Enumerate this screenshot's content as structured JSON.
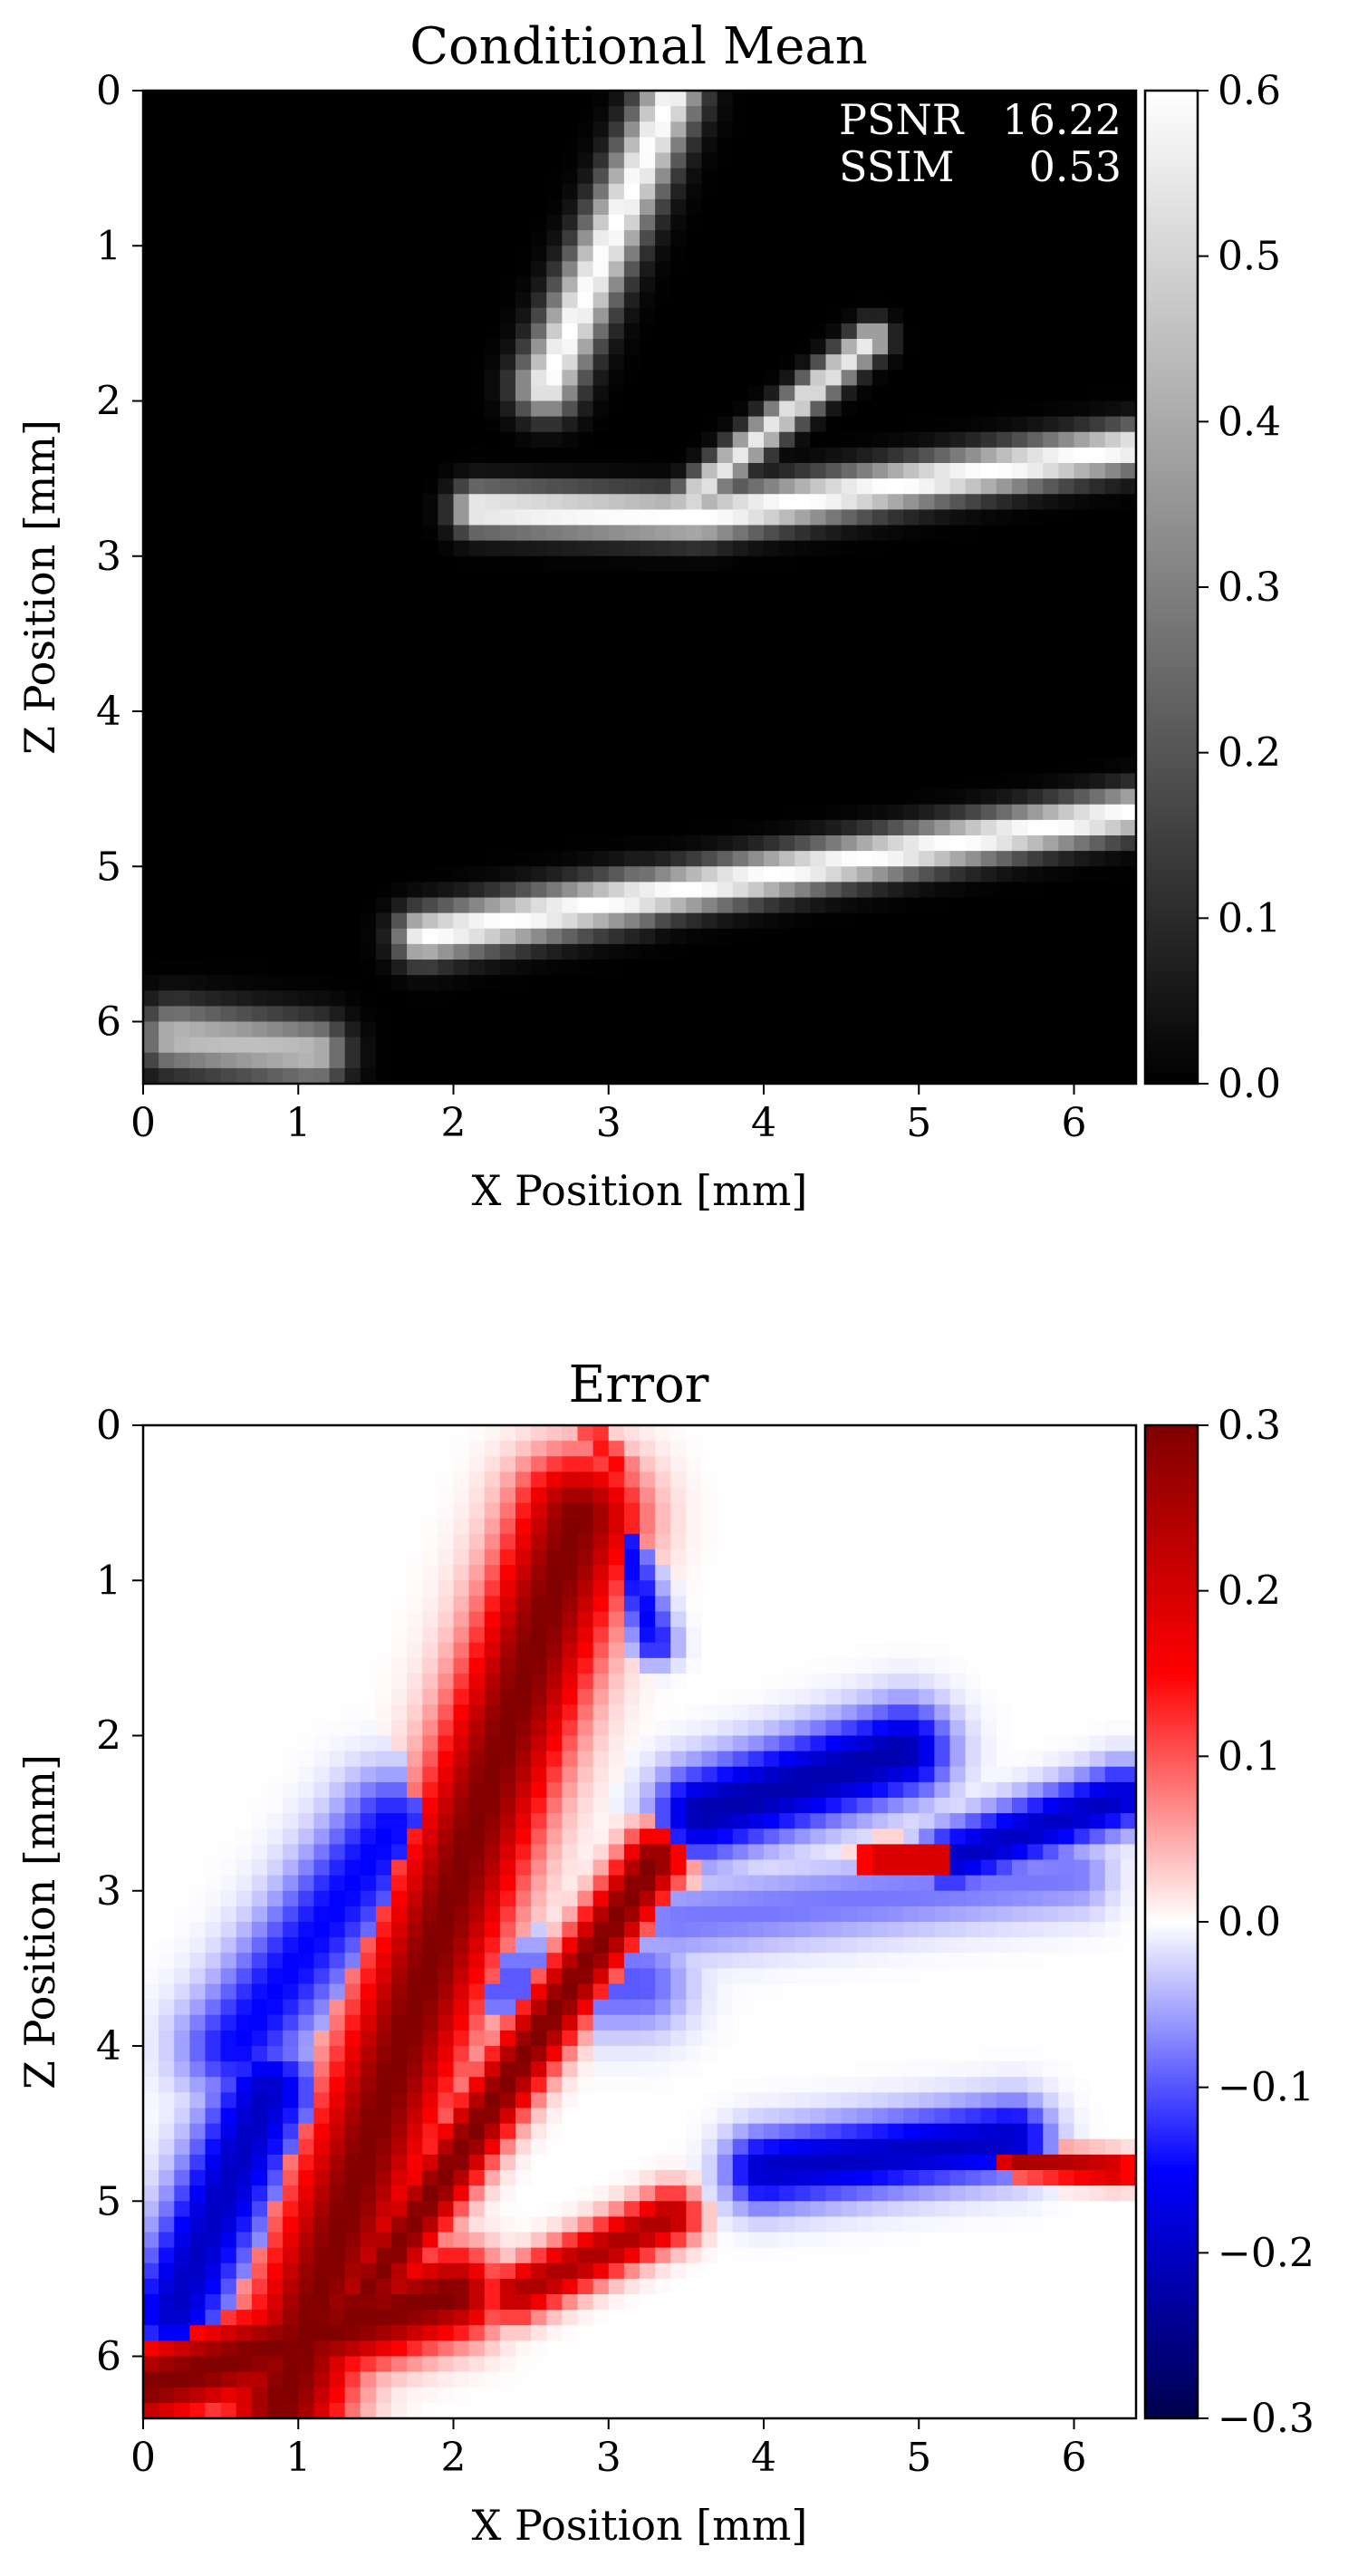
{
  "chart_data": [
    {
      "type": "heatmap",
      "title": "Conditional Mean",
      "xlabel": "X Position [mm]",
      "ylabel": "Z Position [mm]",
      "xlim": [
        0,
        6.4
      ],
      "ylim": [
        6.4,
        0
      ],
      "xticks": [
        0,
        1,
        2,
        3,
        4,
        5,
        6
      ],
      "yticks": [
        0,
        1,
        2,
        3,
        4,
        5,
        6
      ],
      "colormap": "gray",
      "colorbar": {
        "range": [
          0.0,
          0.6
        ],
        "ticks": [
          "0.0",
          "0.1",
          "0.2",
          "0.3",
          "0.4",
          "0.5",
          "0.6"
        ]
      },
      "annotations": [
        {
          "label": "PSNR",
          "value": "16.22"
        },
        {
          "label": "SSIM",
          "value": "0.53"
        }
      ],
      "features": [
        {
          "x1": 2.6,
          "z1": 1.9,
          "x2": 3.4,
          "z2": 0.05,
          "w": 0.28,
          "v": 0.6
        },
        {
          "x1": 2.15,
          "z1": 2.7,
          "x2": 3.6,
          "z2": 2.75,
          "w": 0.22,
          "v": 0.6
        },
        {
          "x1": 3.6,
          "z1": 2.75,
          "x2": 6.4,
          "z2": 2.3,
          "w": 0.22,
          "v": 0.6
        },
        {
          "x1": 3.5,
          "z1": 2.65,
          "x2": 4.7,
          "z2": 1.6,
          "w": 0.16,
          "v": 0.55
        },
        {
          "x1": 1.8,
          "z1": 5.45,
          "x2": 3.2,
          "z2": 5.2,
          "w": 0.24,
          "v": 0.6
        },
        {
          "x1": 3.2,
          "z1": 5.2,
          "x2": 6.4,
          "z2": 4.65,
          "w": 0.22,
          "v": 0.6
        },
        {
          "x1": 0.2,
          "z1": 6.1,
          "x2": 1.1,
          "z2": 6.2,
          "w": 0.3,
          "v": 0.45
        }
      ]
    },
    {
      "type": "heatmap",
      "title": "Error",
      "xlabel": "X Position [mm]",
      "ylabel": "Z Position [mm]",
      "xlim": [
        0,
        6.4
      ],
      "ylim": [
        6.4,
        0
      ],
      "xticks": [
        0,
        1,
        2,
        3,
        4,
        5,
        6
      ],
      "yticks": [
        0,
        1,
        2,
        3,
        4,
        5,
        6
      ],
      "colormap": "seismic",
      "colorbar": {
        "range": [
          -0.3,
          0.3
        ],
        "ticks": [
          "−0.3",
          "−0.2",
          "−0.1",
          "0.0",
          "0.1",
          "0.2",
          "0.3"
        ]
      },
      "features": [
        {
          "x1": 0.9,
          "z1": 6.3,
          "x2": 2.8,
          "z2": 0.6,
          "w": 0.55,
          "v": 0.3
        },
        {
          "x1": 1.3,
          "z1": 5.8,
          "x2": 3.3,
          "z2": 2.8,
          "w": 0.28,
          "v": 0.3
        },
        {
          "x1": 0.0,
          "z1": 6.2,
          "x2": 2.0,
          "z2": 5.6,
          "w": 0.4,
          "v": 0.3
        },
        {
          "x1": 2.4,
          "z1": 5.6,
          "x2": 3.4,
          "z2": 5.1,
          "w": 0.25,
          "v": 0.25
        },
        {
          "x1": 4.7,
          "z1": 2.8,
          "x2": 5.2,
          "z2": 2.8,
          "w": 0.14,
          "v": 0.25
        },
        {
          "x1": 5.6,
          "z1": 4.75,
          "x2": 6.3,
          "z2": 4.8,
          "w": 0.14,
          "v": 0.25
        },
        {
          "x1": 2.9,
          "z1": 0.05,
          "x2": 3.1,
          "z2": 0.3,
          "w": 0.12,
          "v": 0.15
        },
        {
          "x1": 0.6,
          "z1": 4.0,
          "x2": 1.6,
          "z2": 2.6,
          "w": 0.5,
          "v": -0.15
        },
        {
          "x1": 0.2,
          "z1": 5.7,
          "x2": 0.8,
          "z2": 4.3,
          "w": 0.45,
          "v": -0.2
        },
        {
          "x1": 3.6,
          "z1": 2.5,
          "x2": 4.9,
          "z2": 2.1,
          "w": 0.42,
          "v": -0.22
        },
        {
          "x1": 5.2,
          "z1": 2.8,
          "x2": 6.3,
          "z2": 2.4,
          "w": 0.3,
          "v": -0.2
        },
        {
          "x1": 4.0,
          "z1": 4.8,
          "x2": 5.6,
          "z2": 4.6,
          "w": 0.35,
          "v": -0.2
        },
        {
          "x1": 2.2,
          "z1": 3.6,
          "x2": 3.2,
          "z2": 3.6,
          "w": 0.45,
          "v": -0.1
        },
        {
          "x1": 3.0,
          "z1": 0.4,
          "x2": 3.3,
          "z2": 1.4,
          "w": 0.2,
          "v": -0.15
        },
        {
          "x1": 3.4,
          "z1": 3.2,
          "x2": 6.0,
          "z2": 2.9,
          "w": 0.35,
          "v": -0.08
        }
      ]
    }
  ]
}
